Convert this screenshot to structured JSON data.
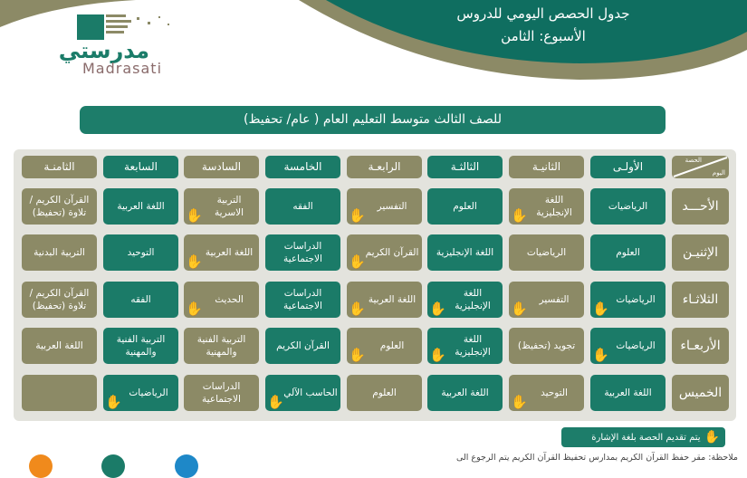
{
  "header": {
    "title": "جدول الحصص اليومي للدروس",
    "week": "الأسبوع: الثامن"
  },
  "logo": {
    "arabic": "مدرستي",
    "latin": "Madrasati"
  },
  "banner": "للصف الثالث متوسط التعليم العام ( عام/ تحفيظ)",
  "colors": {
    "green": "#1b7b68",
    "olive": "#8c8a66",
    "sign": "#f2c811"
  },
  "table": {
    "corner": {
      "period": "الحصة",
      "day": "اليوم"
    },
    "periods": [
      "الأولـى",
      "الثانيـة",
      "الثالثـة",
      "الرابعـة",
      "الخامسة",
      "السادسة",
      "السابعة",
      "الثامنـة"
    ],
    "rows": [
      {
        "day": "الأحـــد",
        "cells": [
          {
            "text": "الرياضيات",
            "sign": false
          },
          {
            "text": "اللغة الإنجليزية",
            "sign": true
          },
          {
            "text": "العلوم",
            "sign": false
          },
          {
            "text": "التفسير",
            "sign": true
          },
          {
            "text": "الفقه",
            "sign": false
          },
          {
            "text": "التربية الاسرية",
            "sign": true
          },
          {
            "text": "اللغة العربية",
            "sign": false
          },
          {
            "text": "القرآن الكريم / تلاوة (تحفيظ)",
            "sign": false
          }
        ]
      },
      {
        "day": "الإثنيـن",
        "cells": [
          {
            "text": "العلوم",
            "sign": false
          },
          {
            "text": "الرياضيات",
            "sign": false
          },
          {
            "text": "اللغة الإنجليزية",
            "sign": false
          },
          {
            "text": "القرآن الكريم",
            "sign": true
          },
          {
            "text": "الدراسات الاجتماعية",
            "sign": false
          },
          {
            "text": "اللغة العربية",
            "sign": true
          },
          {
            "text": "التوحيد",
            "sign": false
          },
          {
            "text": "التربية البدنية",
            "sign": false
          }
        ]
      },
      {
        "day": "الثلاثـاء",
        "cells": [
          {
            "text": "الرياضيات",
            "sign": true
          },
          {
            "text": "التفسير",
            "sign": true
          },
          {
            "text": "اللغة الإنجليزية",
            "sign": true
          },
          {
            "text": "اللغة العربية",
            "sign": true
          },
          {
            "text": "الدراسات الاجتماعية",
            "sign": false
          },
          {
            "text": "الحديث",
            "sign": true
          },
          {
            "text": "الفقه",
            "sign": false
          },
          {
            "text": "القرآن الكريم / تلاوة (تحفيظ)",
            "sign": false
          }
        ]
      },
      {
        "day": "الأربعـاء",
        "cells": [
          {
            "text": "الرياضيات",
            "sign": true
          },
          {
            "text": "تجويد (تحفيظ)",
            "sign": false
          },
          {
            "text": "اللغة الإنجليزية",
            "sign": true
          },
          {
            "text": "العلوم",
            "sign": true
          },
          {
            "text": "القرآن الكريم",
            "sign": false
          },
          {
            "text": "التربية الفنية والمهنية",
            "sign": false
          },
          {
            "text": "التربية الفنية والمهنية",
            "sign": false
          },
          {
            "text": "اللغة العربية",
            "sign": false
          }
        ]
      },
      {
        "day": "الخميس",
        "cells": [
          {
            "text": "اللغة العربية",
            "sign": false
          },
          {
            "text": "التوحيد",
            "sign": true
          },
          {
            "text": "اللغة العربية",
            "sign": false
          },
          {
            "text": "العلوم",
            "sign": false
          },
          {
            "text": "الحاسب الآلي",
            "sign": true
          },
          {
            "text": "الدراسات الاجتماعية",
            "sign": false
          },
          {
            "text": "الرياضيات",
            "sign": true
          },
          {
            "text": "",
            "sign": false
          }
        ]
      }
    ]
  },
  "legend": "يتم تقديم الحصة بلغة الإشارة",
  "note": "ملاحظة: مقر حفظ القرآن الكريم بمدارس تحفيظ القرآن الكريم يتم الرجوع الى"
}
